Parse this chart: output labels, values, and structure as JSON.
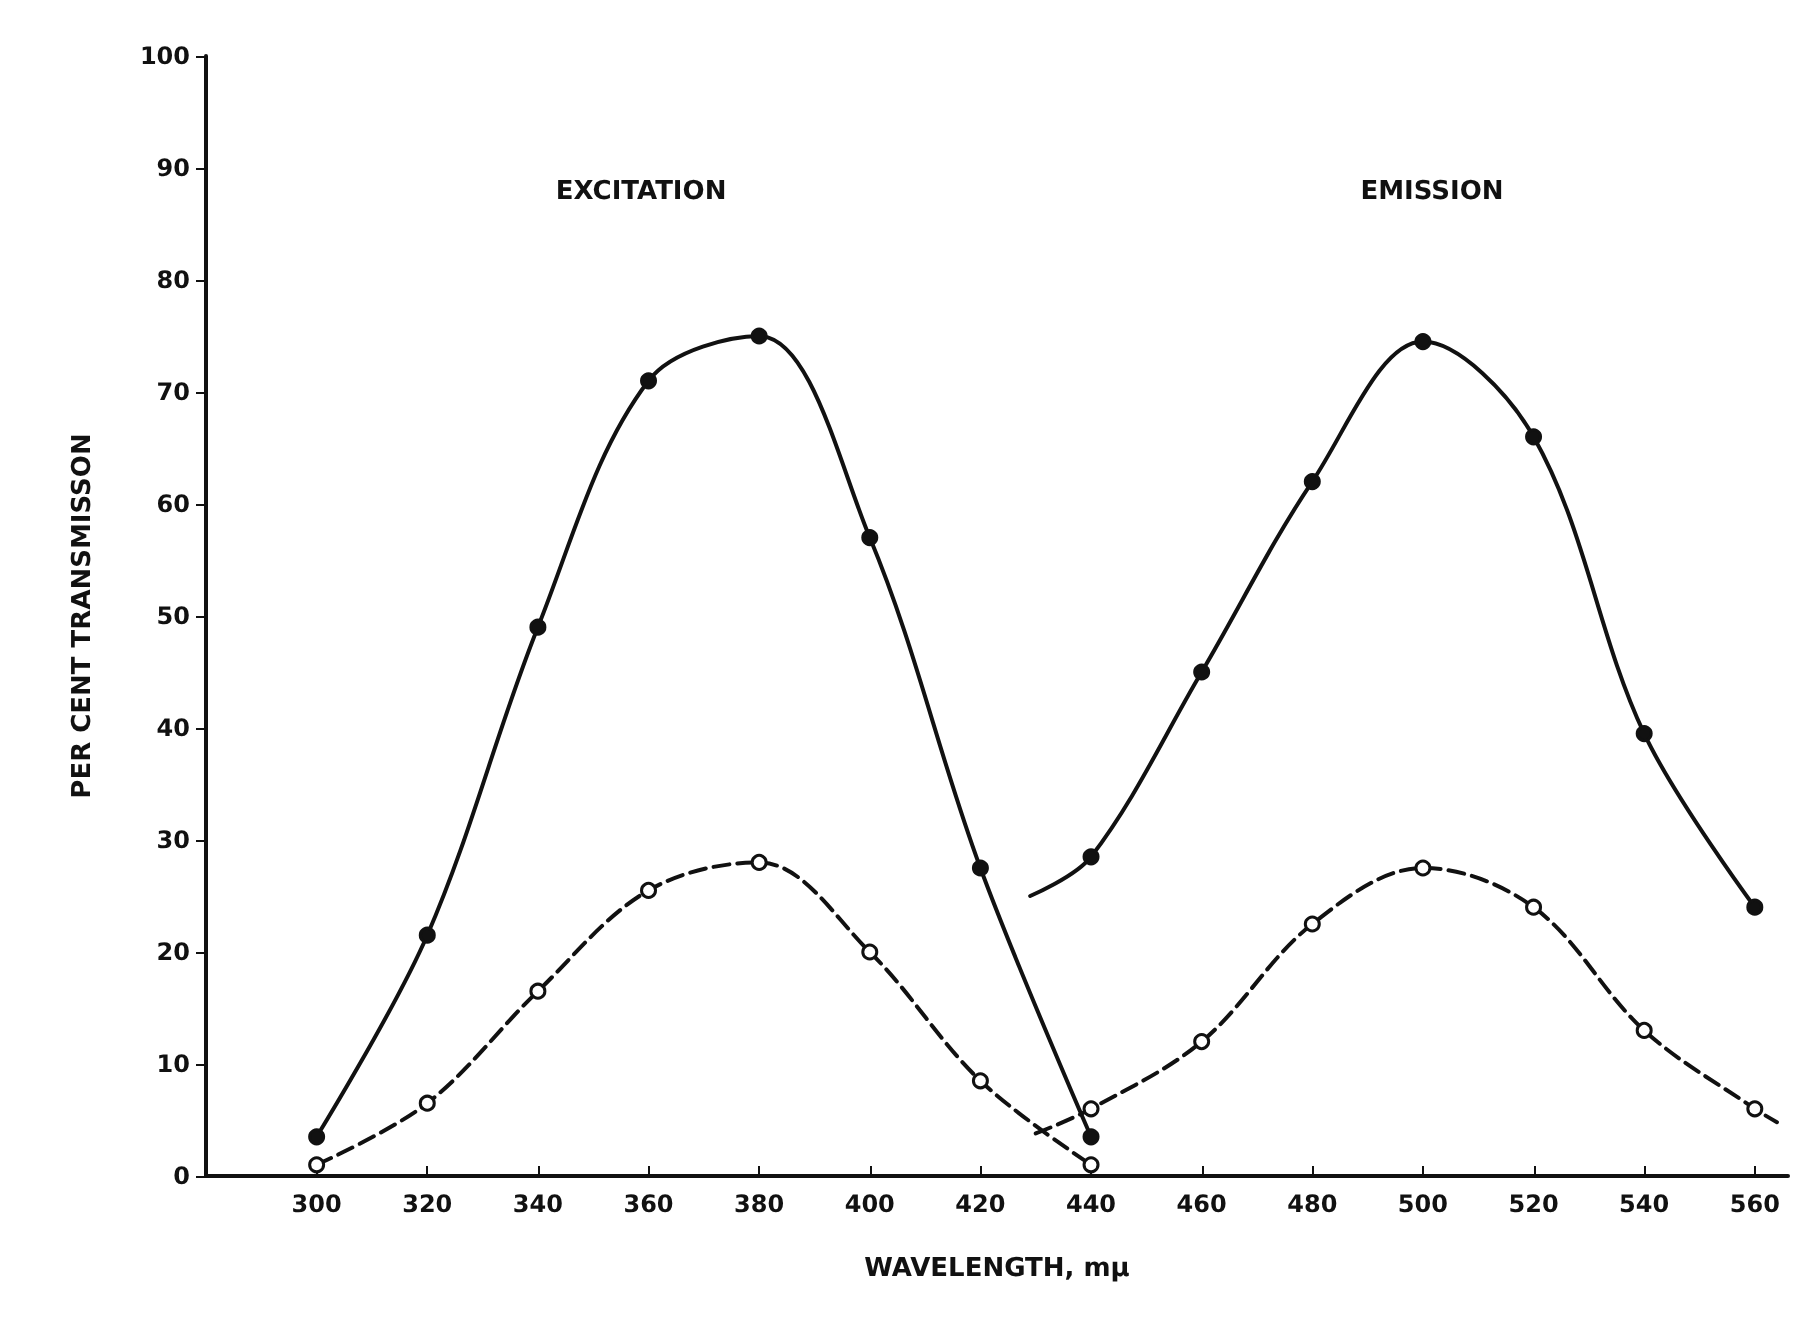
{
  "chart_data": {
    "type": "line",
    "xlabel": "WAVELENGTH, mμ",
    "ylabel": "PER CENT TRANSMISSON",
    "xlim": [
      280,
      566
    ],
    "ylim": [
      0,
      100
    ],
    "xticks": [
      300,
      320,
      340,
      360,
      380,
      400,
      420,
      440,
      460,
      480,
      500,
      520,
      540,
      560
    ],
    "yticks": [
      0,
      10,
      20,
      30,
      40,
      50,
      60,
      70,
      80,
      90,
      100
    ],
    "grid": false,
    "marker": "circle",
    "series": [
      {
        "color": "#111111",
        "line_style": "solid",
        "x": [
          300,
          320,
          340,
          360,
          380,
          400,
          420,
          440
        ],
        "values": [
          3.5,
          21.5,
          49,
          71,
          75,
          57,
          27.5,
          3.5
        ]
      },
      {
        "color": "#111111",
        "line_style": "dashed",
        "x": [
          300,
          320,
          340,
          360,
          380,
          400,
          420,
          440
        ],
        "values": [
          1,
          6.5,
          16.5,
          25.5,
          28,
          20,
          8.5,
          1
        ]
      },
      {
        "color": "#111111",
        "line_style": "solid",
        "x": [
          429,
          440,
          460,
          480,
          500,
          520,
          540,
          560
        ],
        "values": [
          25,
          28.5,
          45,
          62,
          74.5,
          66,
          39.5,
          24
        ]
      },
      {
        "color": "#111111",
        "line_style": "dashed",
        "x": [
          430,
          440,
          460,
          480,
          500,
          520,
          540,
          560,
          564
        ],
        "values": [
          3.8,
          6,
          12,
          22.5,
          27.5,
          24,
          13,
          6,
          4.8
        ]
      }
    ],
    "annotations": [
      "EXCITATION",
      "EMISSION"
    ]
  }
}
